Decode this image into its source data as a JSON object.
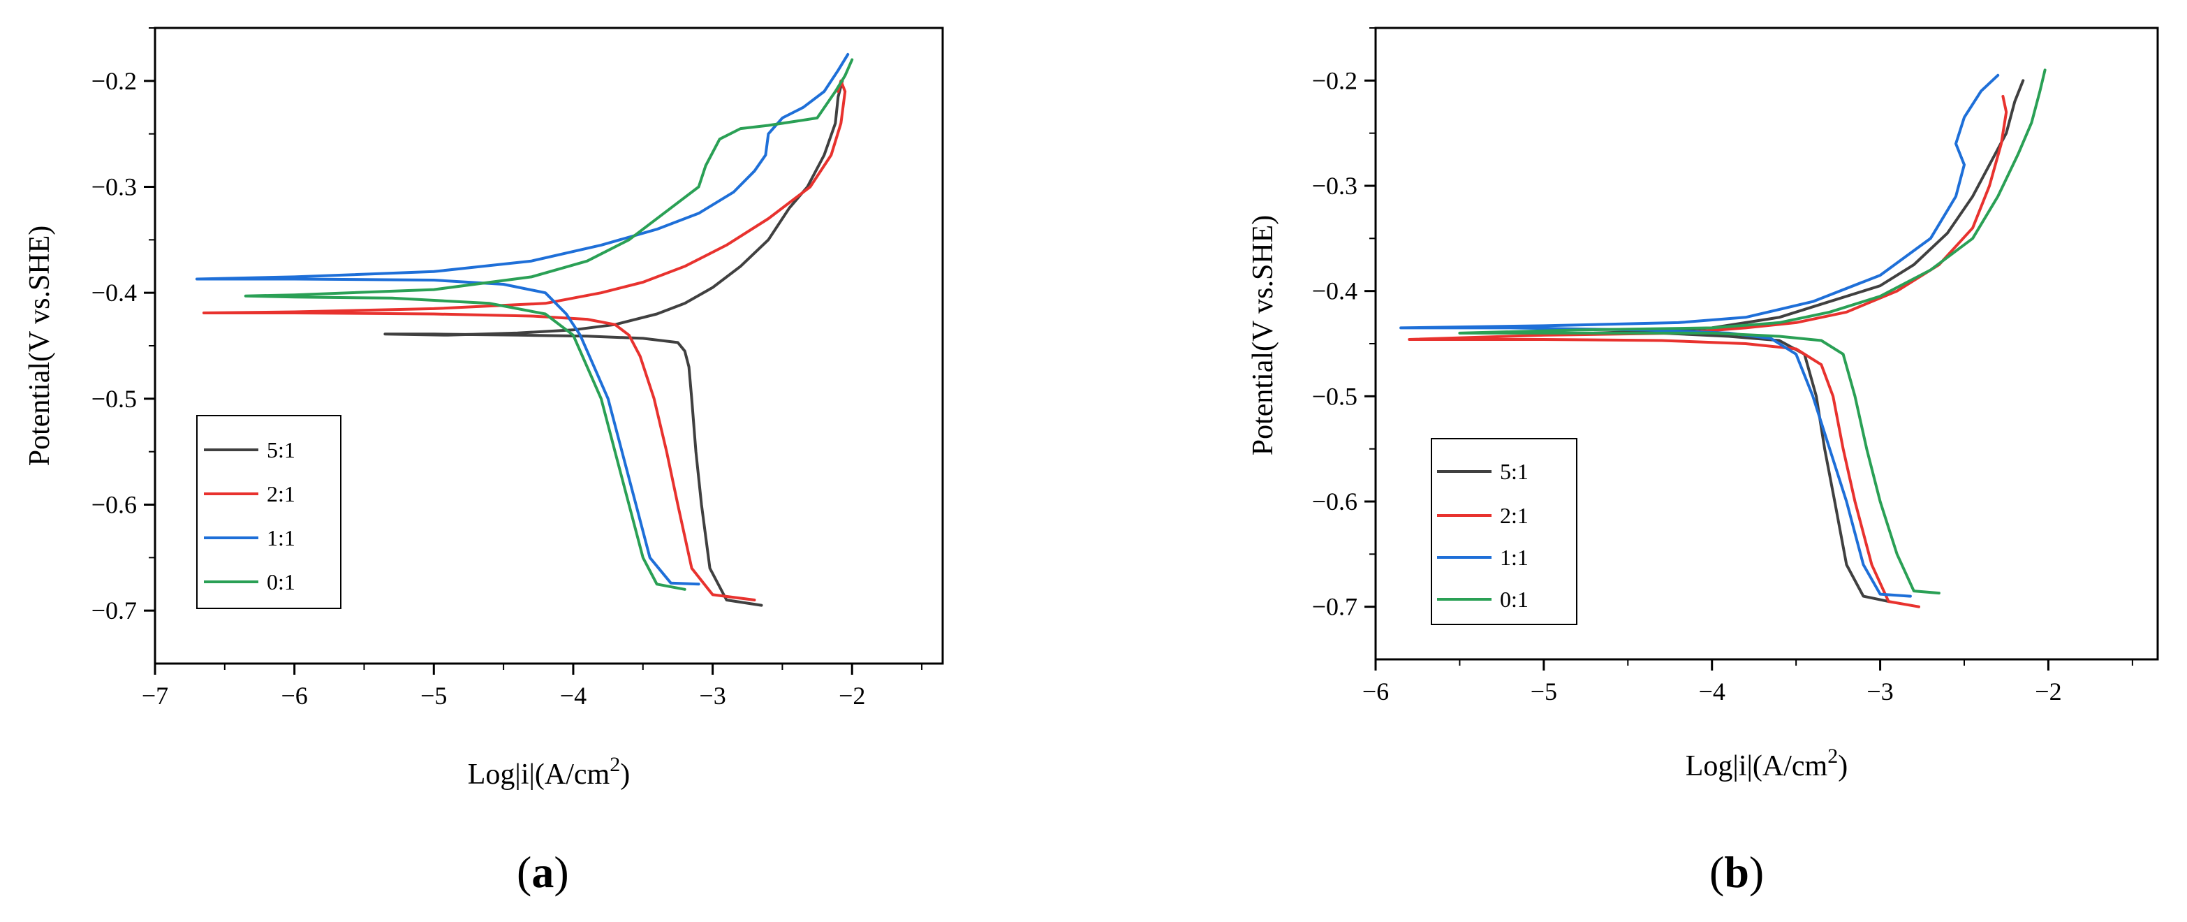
{
  "chart_data": [
    {
      "type": "line",
      "panel_label": "a",
      "xlabel": "Log|i|(A/cm",
      "xlabel_sup": "2",
      "xlabel_end": ")",
      "ylabel": "Potential(V vs.SHE)",
      "xlim": [
        -7.0,
        -1.35
      ],
      "ylim": [
        -0.75,
        -0.15
      ],
      "xticks": [
        -7,
        -6,
        -5,
        -4,
        -3,
        -2
      ],
      "yticks": [
        -0.2,
        -0.3,
        -0.4,
        -0.5,
        -0.6,
        -0.7
      ],
      "x_tick_labels": [
        "−7",
        "−6",
        "−5",
        "−4",
        "−3",
        "−2"
      ],
      "y_tick_labels": [
        "−0.2",
        "−0.3",
        "−0.4",
        "−0.5",
        "−0.6",
        "−0.7"
      ],
      "legend": {
        "position": "bottom-left",
        "entries": [
          "5:1",
          "2:1",
          "1:1",
          "0:1"
        ]
      },
      "series": [
        {
          "name": "5:1",
          "color": "#404040",
          "x": [
            -2.65,
            -2.9,
            -3.02,
            -3.08,
            -3.12,
            -3.15,
            -3.17,
            -3.2,
            -3.25,
            -3.5,
            -3.9,
            -4.4,
            -5.0,
            -5.35,
            -4.9,
            -4.4,
            -4.0,
            -3.7,
            -3.4,
            -3.2,
            -3.0,
            -2.8,
            -2.6,
            -2.45,
            -2.32,
            -2.2,
            -2.12,
            -2.1,
            -2.07
          ],
          "y": [
            -0.695,
            -0.69,
            -0.66,
            -0.6,
            -0.55,
            -0.5,
            -0.47,
            -0.455,
            -0.447,
            -0.443,
            -0.441,
            -0.44,
            -0.439,
            -0.439,
            -0.44,
            -0.438,
            -0.435,
            -0.43,
            -0.42,
            -0.41,
            -0.395,
            -0.375,
            -0.35,
            -0.32,
            -0.3,
            -0.27,
            -0.24,
            -0.215,
            -0.2
          ]
        },
        {
          "name": "2:1",
          "color": "#e8322e",
          "x": [
            -2.7,
            -3.0,
            -3.15,
            -3.25,
            -3.33,
            -3.42,
            -3.52,
            -3.6,
            -3.7,
            -3.9,
            -4.3,
            -5.0,
            -6.0,
            -6.65,
            -6.0,
            -5.0,
            -4.2,
            -3.8,
            -3.5,
            -3.2,
            -2.9,
            -2.6,
            -2.3,
            -2.15,
            -2.08,
            -2.05,
            -2.08,
            -2.1
          ],
          "y": [
            -0.69,
            -0.685,
            -0.66,
            -0.6,
            -0.55,
            -0.5,
            -0.46,
            -0.44,
            -0.43,
            -0.425,
            -0.422,
            -0.42,
            -0.419,
            -0.419,
            -0.418,
            -0.415,
            -0.41,
            -0.4,
            -0.39,
            -0.375,
            -0.355,
            -0.33,
            -0.3,
            -0.27,
            -0.24,
            -0.21,
            -0.2,
            -0.21
          ]
        },
        {
          "name": "1:1",
          "color": "#1e6fd8",
          "x": [
            -3.1,
            -3.3,
            -3.45,
            -3.55,
            -3.65,
            -3.75,
            -3.85,
            -3.95,
            -4.05,
            -4.2,
            -4.5,
            -5.0,
            -6.0,
            -6.7,
            -6.0,
            -5.0,
            -4.3,
            -3.8,
            -3.4,
            -3.1,
            -2.85,
            -2.7,
            -2.62,
            -2.6,
            -2.5,
            -2.35,
            -2.2,
            -2.1,
            -2.03
          ],
          "y": [
            -0.675,
            -0.674,
            -0.65,
            -0.6,
            -0.55,
            -0.5,
            -0.47,
            -0.44,
            -0.42,
            -0.4,
            -0.392,
            -0.388,
            -0.387,
            -0.387,
            -0.385,
            -0.38,
            -0.37,
            -0.355,
            -0.34,
            -0.325,
            -0.305,
            -0.285,
            -0.27,
            -0.25,
            -0.235,
            -0.225,
            -0.21,
            -0.19,
            -0.175
          ]
        },
        {
          "name": "0:1",
          "color": "#2aa055",
          "x": [
            -3.2,
            -3.4,
            -3.5,
            -3.6,
            -3.7,
            -3.8,
            -3.9,
            -4.0,
            -4.2,
            -4.6,
            -5.3,
            -6.0,
            -6.35,
            -6.0,
            -5.0,
            -4.3,
            -3.9,
            -3.6,
            -3.3,
            -3.1,
            -3.05,
            -2.95,
            -2.8,
            -2.6,
            -2.4,
            -2.25,
            -2.12,
            -2.05,
            -2.0
          ],
          "y": [
            -0.68,
            -0.675,
            -0.65,
            -0.6,
            -0.55,
            -0.5,
            -0.47,
            -0.44,
            -0.42,
            -0.41,
            -0.405,
            -0.404,
            -0.403,
            -0.402,
            -0.397,
            -0.385,
            -0.37,
            -0.35,
            -0.32,
            -0.3,
            -0.28,
            -0.255,
            -0.245,
            -0.242,
            -0.238,
            -0.235,
            -0.21,
            -0.195,
            -0.18
          ]
        }
      ]
    },
    {
      "type": "line",
      "panel_label": "b",
      "xlabel": "Log|i|(A/cm",
      "xlabel_sup": "2",
      "xlabel_end": ")",
      "ylabel": "Potential(V vs.SHE)",
      "xlim": [
        -6.0,
        -1.35
      ],
      "ylim": [
        -0.75,
        -0.15
      ],
      "xticks": [
        -6,
        -5,
        -4,
        -3,
        -2
      ],
      "yticks": [
        -0.2,
        -0.3,
        -0.4,
        -0.5,
        -0.6,
        -0.7
      ],
      "x_tick_labels": [
        "−6",
        "−5",
        "−4",
        "−3",
        "−2"
      ],
      "y_tick_labels": [
        "−0.2",
        "−0.3",
        "−0.4",
        "−0.5",
        "−0.6",
        "−0.7"
      ],
      "legend": {
        "position": "bottom-left",
        "entries": [
          "5:1",
          "2:1",
          "1:1",
          "0:1"
        ]
      },
      "series": [
        {
          "name": "5:1",
          "color": "#404040",
          "x": [
            -2.95,
            -3.1,
            -3.2,
            -3.27,
            -3.33,
            -3.38,
            -3.45,
            -3.6,
            -3.9,
            -4.3,
            -4.7,
            -4.3,
            -4.0,
            -3.8,
            -3.6,
            -3.3,
            -3.0,
            -2.8,
            -2.6,
            -2.45,
            -2.35,
            -2.25,
            -2.2,
            -2.15
          ],
          "y": [
            -0.695,
            -0.69,
            -0.66,
            -0.6,
            -0.55,
            -0.5,
            -0.46,
            -0.447,
            -0.443,
            -0.44,
            -0.44,
            -0.438,
            -0.435,
            -0.43,
            -0.425,
            -0.41,
            -0.395,
            -0.375,
            -0.345,
            -0.31,
            -0.28,
            -0.25,
            -0.22,
            -0.2
          ]
        },
        {
          "name": "2:1",
          "color": "#e8322e",
          "x": [
            -2.77,
            -2.95,
            -3.05,
            -3.15,
            -3.22,
            -3.28,
            -3.35,
            -3.5,
            -3.8,
            -4.3,
            -5.0,
            -5.8,
            -5.0,
            -4.2,
            -3.8,
            -3.5,
            -3.2,
            -2.9,
            -2.65,
            -2.45,
            -2.35,
            -2.28,
            -2.25,
            -2.27
          ],
          "y": [
            -0.7,
            -0.695,
            -0.66,
            -0.6,
            -0.55,
            -0.5,
            -0.47,
            -0.455,
            -0.45,
            -0.447,
            -0.446,
            -0.446,
            -0.442,
            -0.44,
            -0.435,
            -0.43,
            -0.42,
            -0.4,
            -0.375,
            -0.34,
            -0.3,
            -0.26,
            -0.23,
            -0.215
          ]
        },
        {
          "name": "1:1",
          "color": "#1e6fd8",
          "x": [
            -2.82,
            -3.0,
            -3.1,
            -3.2,
            -3.3,
            -3.4,
            -3.5,
            -3.65,
            -3.9,
            -4.4,
            -5.2,
            -5.85,
            -5.0,
            -4.2,
            -3.8,
            -3.4,
            -3.0,
            -2.7,
            -2.55,
            -2.5,
            -2.55,
            -2.5,
            -2.4,
            -2.3
          ],
          "y": [
            -0.69,
            -0.688,
            -0.66,
            -0.6,
            -0.55,
            -0.5,
            -0.46,
            -0.445,
            -0.44,
            -0.437,
            -0.435,
            -0.435,
            -0.433,
            -0.43,
            -0.425,
            -0.41,
            -0.385,
            -0.35,
            -0.31,
            -0.28,
            -0.26,
            -0.235,
            -0.21,
            -0.195
          ]
        },
        {
          "name": "0:1",
          "color": "#2aa055",
          "x": [
            -2.65,
            -2.8,
            -2.9,
            -3.0,
            -3.08,
            -3.15,
            -3.22,
            -3.35,
            -3.6,
            -4.0,
            -4.6,
            -5.5,
            -4.8,
            -4.0,
            -3.6,
            -3.3,
            -3.0,
            -2.7,
            -2.45,
            -2.3,
            -2.18,
            -2.1,
            -2.05,
            -2.02
          ],
          "y": [
            -0.687,
            -0.685,
            -0.65,
            -0.6,
            -0.55,
            -0.5,
            -0.46,
            -0.447,
            -0.443,
            -0.44,
            -0.44,
            -0.44,
            -0.437,
            -0.435,
            -0.43,
            -0.42,
            -0.405,
            -0.38,
            -0.35,
            -0.31,
            -0.27,
            -0.24,
            -0.21,
            -0.19
          ]
        }
      ]
    }
  ]
}
